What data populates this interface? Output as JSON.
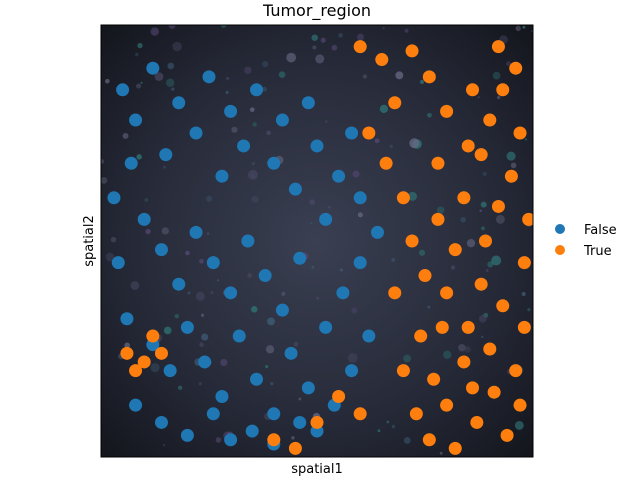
{
  "chart_data": {
    "type": "scatter",
    "title": "Tumor_region",
    "xlabel": "spatial1",
    "ylabel": "spatial2",
    "xlim": [
      0,
      100
    ],
    "ylim": [
      0,
      100
    ],
    "y_inverted": true,
    "grid": false,
    "legend_position": "right",
    "background": "dark fluorescence tissue image",
    "series": [
      {
        "name": "False",
        "color": "#1f77b4",
        "points": [
          [
            5,
            15
          ],
          [
            8,
            22
          ],
          [
            12,
            10
          ],
          [
            15,
            30
          ],
          [
            18,
            18
          ],
          [
            22,
            25
          ],
          [
            25,
            12
          ],
          [
            28,
            35
          ],
          [
            30,
            20
          ],
          [
            33,
            28
          ],
          [
            36,
            15
          ],
          [
            40,
            32
          ],
          [
            42,
            22
          ],
          [
            45,
            38
          ],
          [
            48,
            18
          ],
          [
            50,
            28
          ],
          [
            52,
            45
          ],
          [
            55,
            35
          ],
          [
            58,
            25
          ],
          [
            60,
            40
          ],
          [
            10,
            45
          ],
          [
            14,
            52
          ],
          [
            18,
            60
          ],
          [
            22,
            48
          ],
          [
            26,
            55
          ],
          [
            30,
            62
          ],
          [
            34,
            50
          ],
          [
            38,
            58
          ],
          [
            42,
            66
          ],
          [
            46,
            54
          ],
          [
            6,
            68
          ],
          [
            12,
            74
          ],
          [
            16,
            80
          ],
          [
            20,
            70
          ],
          [
            24,
            78
          ],
          [
            28,
            86
          ],
          [
            32,
            72
          ],
          [
            36,
            82
          ],
          [
            40,
            90
          ],
          [
            44,
            76
          ],
          [
            48,
            84
          ],
          [
            52,
            70
          ],
          [
            56,
            62
          ],
          [
            60,
            55
          ],
          [
            64,
            48
          ],
          [
            62,
            72
          ],
          [
            58,
            80
          ],
          [
            54,
            88
          ],
          [
            50,
            94
          ],
          [
            46,
            92
          ],
          [
            8,
            88
          ],
          [
            14,
            92
          ],
          [
            20,
            95
          ],
          [
            26,
            90
          ],
          [
            30,
            96
          ],
          [
            35,
            94
          ],
          [
            40,
            97
          ],
          [
            3,
            40
          ],
          [
            4,
            55
          ],
          [
            7,
            32
          ]
        ]
      },
      {
        "name": "True",
        "color": "#ff7f0e",
        "points": [
          [
            70,
            40
          ],
          [
            72,
            50
          ],
          [
            75,
            58
          ],
          [
            78,
            45
          ],
          [
            80,
            62
          ],
          [
            82,
            52
          ],
          [
            85,
            70
          ],
          [
            88,
            60
          ],
          [
            90,
            75
          ],
          [
            93,
            65
          ],
          [
            96,
            80
          ],
          [
            98,
            55
          ],
          [
            74,
            72
          ],
          [
            77,
            82
          ],
          [
            80,
            88
          ],
          [
            84,
            78
          ],
          [
            87,
            92
          ],
          [
            91,
            85
          ],
          [
            94,
            95
          ],
          [
            97,
            88
          ],
          [
            68,
            62
          ],
          [
            70,
            80
          ],
          [
            73,
            90
          ],
          [
            76,
            96
          ],
          [
            79,
            70
          ],
          [
            82,
            98
          ],
          [
            86,
            84
          ],
          [
            89,
            50
          ],
          [
            92,
            42
          ],
          [
            95,
            35
          ],
          [
            88,
            30
          ],
          [
            90,
            22
          ],
          [
            93,
            15
          ],
          [
            96,
            10
          ],
          [
            85,
            28
          ],
          [
            80,
            20
          ],
          [
            76,
            12
          ],
          [
            72,
            6
          ],
          [
            65,
            8
          ],
          [
            60,
            5
          ],
          [
            68,
            18
          ],
          [
            62,
            25
          ],
          [
            66,
            32
          ],
          [
            97,
            25
          ],
          [
            99,
            45
          ],
          [
            98,
            70
          ],
          [
            84,
            40
          ],
          [
            78,
            32
          ],
          [
            86,
            15
          ],
          [
            92,
            5
          ],
          [
            6,
            76
          ],
          [
            10,
            78
          ],
          [
            8,
            80
          ],
          [
            12,
            72
          ],
          [
            14,
            76
          ],
          [
            40,
            96
          ],
          [
            45,
            98
          ],
          [
            50,
            92
          ],
          [
            55,
            86
          ],
          [
            60,
            90
          ]
        ]
      }
    ]
  }
}
